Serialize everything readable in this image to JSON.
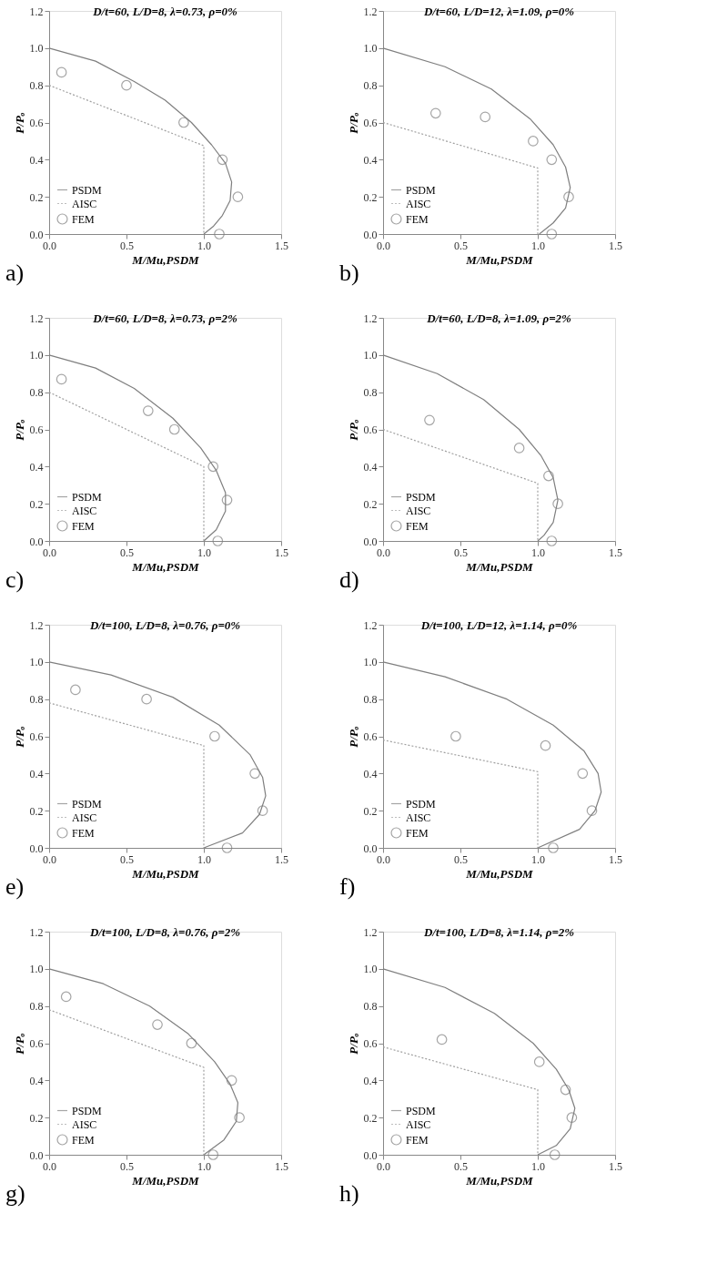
{
  "chart_data": [
    {
      "type": "line",
      "title": "D/t=60, L/D=8, λ=0.73, ρ=0%",
      "xlabel": "M/Mu,PSDM",
      "ylabel": "P/Pₒ",
      "annotations": [
        "a)"
      ],
      "legend": "bottom left",
      "grid": false,
      "xlim": [
        0,
        1.5
      ],
      "xticks": [
        {
          "value": 0,
          "label": "0.0"
        },
        {
          "value": 0.5,
          "label": "0.5"
        },
        {
          "value": 1,
          "label": "1.0"
        },
        {
          "value": 1.5,
          "label": "1.5"
        }
      ],
      "ylim": [
        0,
        1.2
      ],
      "yticks": [
        {
          "value": 0,
          "label": "0.0"
        },
        {
          "value": 0.2,
          "label": "0.2"
        },
        {
          "value": 0.4,
          "label": "0.4"
        },
        {
          "value": 0.6,
          "label": "0.6"
        },
        {
          "value": 0.8,
          "label": "0.8"
        },
        {
          "value": 1,
          "label": "1.0"
        },
        {
          "value": 1.2,
          "label": "1.2"
        }
      ],
      "series": [
        {
          "name": "PSDM",
          "color": "#7f7f7f",
          "line_style": "solid",
          "x": [
            0,
            0.3,
            0.55,
            0.75,
            0.92,
            1.05,
            1.14,
            1.18,
            1.17,
            1.12,
            1.06,
            1.0
          ],
          "values": [
            1.0,
            0.93,
            0.82,
            0.72,
            0.6,
            0.48,
            0.38,
            0.28,
            0.18,
            0.1,
            0.04,
            0.0
          ]
        },
        {
          "name": "AISC",
          "color": "#a0a0a0",
          "line_style": "dotted",
          "x": [
            0,
            1.0,
            1.0
          ],
          "values": [
            0.8,
            0.475,
            0.0
          ]
        },
        {
          "name": "FEM",
          "type": "scatter",
          "marker": "circle",
          "color": "#7f7f7f",
          "x": [
            0.08,
            0.5,
            0.87,
            1.12,
            1.22,
            1.1
          ],
          "values": [
            0.87,
            0.8,
            0.6,
            0.4,
            0.2,
            0.0
          ]
        }
      ]
    },
    {
      "type": "line",
      "title": "D/t=60, L/D=12, λ=1.09, ρ=0%",
      "xlabel": "M/Mu,PSDM",
      "ylabel": "P/Pₒ",
      "annotations": [
        "b)"
      ],
      "legend": "bottom left",
      "grid": false,
      "xlim": [
        0,
        1.5
      ],
      "xticks": [
        {
          "value": 0,
          "label": "0.0"
        },
        {
          "value": 0.5,
          "label": "0.5"
        },
        {
          "value": 1,
          "label": "1.0"
        },
        {
          "value": 1.5,
          "label": "1.5"
        }
      ],
      "ylim": [
        0,
        1.2
      ],
      "yticks": [
        {
          "value": 0,
          "label": "0.0"
        },
        {
          "value": 0.2,
          "label": "0.2"
        },
        {
          "value": 0.4,
          "label": "0.4"
        },
        {
          "value": 0.6,
          "label": "0.6"
        },
        {
          "value": 0.8,
          "label": "0.8"
        },
        {
          "value": 1,
          "label": "1.0"
        },
        {
          "value": 1.2,
          "label": "1.2"
        }
      ],
      "series": [
        {
          "name": "PSDM",
          "color": "#7f7f7f",
          "line_style": "solid",
          "x": [
            0,
            0.4,
            0.7,
            0.95,
            1.1,
            1.18,
            1.21,
            1.18,
            1.1,
            1.01
          ],
          "values": [
            1.0,
            0.9,
            0.78,
            0.62,
            0.48,
            0.36,
            0.25,
            0.14,
            0.06,
            0.0
          ]
        },
        {
          "name": "AISC",
          "color": "#a0a0a0",
          "line_style": "dotted",
          "x": [
            0,
            1.0,
            1.0
          ],
          "values": [
            0.6,
            0.355,
            0.0
          ]
        },
        {
          "name": "FEM",
          "type": "scatter",
          "marker": "circle",
          "color": "#7f7f7f",
          "x": [
            0.34,
            0.66,
            0.97,
            1.09,
            1.2,
            1.09
          ],
          "values": [
            0.65,
            0.63,
            0.5,
            0.4,
            0.2,
            0.0
          ]
        }
      ]
    },
    {
      "type": "line",
      "title": "D/t=60, L/D=8, λ=0.73, ρ=2%",
      "xlabel": "M/Mu,PSDM",
      "ylabel": "P/Pₒ",
      "annotations": [
        "c)"
      ],
      "legend": "bottom left",
      "grid": false,
      "xlim": [
        0,
        1.5
      ],
      "xticks": [
        {
          "value": 0,
          "label": "0.0"
        },
        {
          "value": 0.5,
          "label": "0.5"
        },
        {
          "value": 1,
          "label": "1.0"
        },
        {
          "value": 1.5,
          "label": "1.5"
        }
      ],
      "ylim": [
        0,
        1.2
      ],
      "yticks": [
        {
          "value": 0,
          "label": "0.0"
        },
        {
          "value": 0.2,
          "label": "0.2"
        },
        {
          "value": 0.4,
          "label": "0.4"
        },
        {
          "value": 0.6,
          "label": "0.6"
        },
        {
          "value": 0.8,
          "label": "0.8"
        },
        {
          "value": 1,
          "label": "1.0"
        },
        {
          "value": 1.2,
          "label": "1.2"
        }
      ],
      "series": [
        {
          "name": "PSDM",
          "color": "#7f7f7f",
          "line_style": "solid",
          "x": [
            0,
            0.3,
            0.55,
            0.8,
            0.98,
            1.08,
            1.14,
            1.14,
            1.08,
            1.0
          ],
          "values": [
            1.0,
            0.93,
            0.82,
            0.66,
            0.5,
            0.38,
            0.26,
            0.16,
            0.06,
            0.0
          ]
        },
        {
          "name": "AISC",
          "color": "#a0a0a0",
          "line_style": "dotted",
          "x": [
            0,
            1.0,
            1.0
          ],
          "values": [
            0.8,
            0.4,
            0.0
          ]
        },
        {
          "name": "FEM",
          "type": "scatter",
          "marker": "circle",
          "color": "#7f7f7f",
          "x": [
            0.08,
            0.64,
            0.81,
            1.06,
            1.15,
            1.09
          ],
          "values": [
            0.87,
            0.7,
            0.6,
            0.4,
            0.22,
            0.0
          ]
        }
      ]
    },
    {
      "type": "line",
      "title": "D/t=60, L/D=8, λ=1.09, ρ=2%",
      "xlabel": "M/Mu,PSDM",
      "ylabel": "P/Pₒ",
      "annotations": [
        "d)"
      ],
      "legend": "bottom left",
      "grid": false,
      "xlim": [
        0,
        1.5
      ],
      "xticks": [
        {
          "value": 0,
          "label": "0.0"
        },
        {
          "value": 0.5,
          "label": "0.5"
        },
        {
          "value": 1,
          "label": "1.0"
        },
        {
          "value": 1.5,
          "label": "1.5"
        }
      ],
      "ylim": [
        0,
        1.2
      ],
      "yticks": [
        {
          "value": 0,
          "label": "0.0"
        },
        {
          "value": 0.2,
          "label": "0.2"
        },
        {
          "value": 0.4,
          "label": "0.4"
        },
        {
          "value": 0.6,
          "label": "0.6"
        },
        {
          "value": 0.8,
          "label": "0.8"
        },
        {
          "value": 1,
          "label": "1.0"
        },
        {
          "value": 1.2,
          "label": "1.2"
        }
      ],
      "series": [
        {
          "name": "PSDM",
          "color": "#7f7f7f",
          "line_style": "solid",
          "x": [
            0,
            0.35,
            0.65,
            0.88,
            1.02,
            1.1,
            1.13,
            1.1,
            1.04,
            1.0
          ],
          "values": [
            1.0,
            0.9,
            0.76,
            0.6,
            0.46,
            0.34,
            0.22,
            0.1,
            0.03,
            0.0
          ]
        },
        {
          "name": "AISC",
          "color": "#a0a0a0",
          "line_style": "dotted",
          "x": [
            0,
            1.0,
            1.0
          ],
          "values": [
            0.6,
            0.31,
            0.0
          ]
        },
        {
          "name": "FEM",
          "type": "scatter",
          "marker": "circle",
          "color": "#7f7f7f",
          "x": [
            0.3,
            0.88,
            1.07,
            1.13,
            1.09
          ],
          "values": [
            0.65,
            0.5,
            0.35,
            0.2,
            0.0
          ]
        }
      ]
    },
    {
      "type": "line",
      "title": "D/t=100, L/D=8, λ=0.76, ρ=0%",
      "xlabel": "M/Mu,PSDM",
      "ylabel": "P/Pₒ",
      "annotations": [
        "e)"
      ],
      "legend": "bottom left",
      "grid": false,
      "xlim": [
        0,
        1.5
      ],
      "xticks": [
        {
          "value": 0,
          "label": "0.0"
        },
        {
          "value": 0.5,
          "label": "0.5"
        },
        {
          "value": 1,
          "label": "1.0"
        },
        {
          "value": 1.5,
          "label": "1.5"
        }
      ],
      "ylim": [
        0,
        1.2
      ],
      "yticks": [
        {
          "value": 0,
          "label": "0.0"
        },
        {
          "value": 0.2,
          "label": "0.2"
        },
        {
          "value": 0.4,
          "label": "0.4"
        },
        {
          "value": 0.6,
          "label": "0.6"
        },
        {
          "value": 0.8,
          "label": "0.8"
        },
        {
          "value": 1,
          "label": "1.0"
        },
        {
          "value": 1.2,
          "label": "1.2"
        }
      ],
      "series": [
        {
          "name": "PSDM",
          "color": "#7f7f7f",
          "line_style": "solid",
          "x": [
            0,
            0.4,
            0.8,
            1.1,
            1.3,
            1.38,
            1.4,
            1.36,
            1.25,
            1.0
          ],
          "values": [
            1.0,
            0.93,
            0.81,
            0.66,
            0.5,
            0.38,
            0.28,
            0.18,
            0.08,
            0.0
          ]
        },
        {
          "name": "AISC",
          "color": "#a0a0a0",
          "line_style": "dotted",
          "x": [
            0,
            1.0,
            1.0
          ],
          "values": [
            0.78,
            0.55,
            0.0
          ]
        },
        {
          "name": "FEM",
          "type": "scatter",
          "marker": "circle",
          "color": "#7f7f7f",
          "x": [
            0.17,
            0.63,
            1.07,
            1.33,
            1.38,
            1.15
          ],
          "values": [
            0.85,
            0.8,
            0.6,
            0.4,
            0.2,
            0.0
          ]
        }
      ]
    },
    {
      "type": "line",
      "title": "D/t=100, L/D=12, λ=1.14, ρ=0%",
      "xlabel": "M/Mu,PSDM",
      "ylabel": "P/Pₒ",
      "annotations": [
        "f)"
      ],
      "legend": "bottom left",
      "grid": false,
      "xlim": [
        0,
        1.5
      ],
      "xticks": [
        {
          "value": 0,
          "label": "0.0"
        },
        {
          "value": 0.5,
          "label": "0.5"
        },
        {
          "value": 1,
          "label": "1.0"
        },
        {
          "value": 1.5,
          "label": "1.5"
        }
      ],
      "ylim": [
        0,
        1.2
      ],
      "yticks": [
        {
          "value": 0,
          "label": "0.0"
        },
        {
          "value": 0.2,
          "label": "0.2"
        },
        {
          "value": 0.4,
          "label": "0.4"
        },
        {
          "value": 0.6,
          "label": "0.6"
        },
        {
          "value": 0.8,
          "label": "0.8"
        },
        {
          "value": 1,
          "label": "1.0"
        },
        {
          "value": 1.2,
          "label": "1.2"
        }
      ],
      "series": [
        {
          "name": "PSDM",
          "color": "#7f7f7f",
          "line_style": "solid",
          "x": [
            0,
            0.4,
            0.8,
            1.1,
            1.3,
            1.39,
            1.41,
            1.37,
            1.27,
            1.0
          ],
          "values": [
            1.0,
            0.92,
            0.8,
            0.66,
            0.52,
            0.4,
            0.3,
            0.2,
            0.1,
            0.0
          ]
        },
        {
          "name": "AISC",
          "color": "#a0a0a0",
          "line_style": "dotted",
          "x": [
            0,
            1.0,
            1.0
          ],
          "values": [
            0.58,
            0.41,
            0.0
          ]
        },
        {
          "name": "FEM",
          "type": "scatter",
          "marker": "circle",
          "color": "#7f7f7f",
          "x": [
            0.47,
            1.05,
            1.29,
            1.35,
            1.1
          ],
          "values": [
            0.6,
            0.55,
            0.4,
            0.2,
            0.0
          ]
        }
      ]
    },
    {
      "type": "line",
      "title": "D/t=100, L/D=8, λ=0.76, ρ=2%",
      "xlabel": "M/Mu,PSDM",
      "ylabel": "P/Pₒ",
      "annotations": [
        "g)"
      ],
      "legend": "bottom left",
      "grid": false,
      "xlim": [
        0,
        1.5
      ],
      "xticks": [
        {
          "value": 0,
          "label": "0.0"
        },
        {
          "value": 0.5,
          "label": "0.5"
        },
        {
          "value": 1,
          "label": "1.0"
        },
        {
          "value": 1.5,
          "label": "1.5"
        }
      ],
      "ylim": [
        0,
        1.2
      ],
      "yticks": [
        {
          "value": 0,
          "label": "0.0"
        },
        {
          "value": 0.2,
          "label": "0.2"
        },
        {
          "value": 0.4,
          "label": "0.4"
        },
        {
          "value": 0.6,
          "label": "0.6"
        },
        {
          "value": 0.8,
          "label": "0.8"
        },
        {
          "value": 1,
          "label": "1.0"
        },
        {
          "value": 1.2,
          "label": "1.2"
        }
      ],
      "series": [
        {
          "name": "PSDM",
          "color": "#7f7f7f",
          "line_style": "solid",
          "x": [
            0,
            0.35,
            0.65,
            0.9,
            1.07,
            1.17,
            1.22,
            1.21,
            1.13,
            1.0
          ],
          "values": [
            1.0,
            0.92,
            0.8,
            0.65,
            0.5,
            0.38,
            0.28,
            0.18,
            0.08,
            0.0
          ]
        },
        {
          "name": "AISC",
          "color": "#a0a0a0",
          "line_style": "dotted",
          "x": [
            0,
            1.0,
            1.0
          ],
          "values": [
            0.78,
            0.47,
            0.0
          ]
        },
        {
          "name": "FEM",
          "type": "scatter",
          "marker": "circle",
          "color": "#7f7f7f",
          "x": [
            0.11,
            0.7,
            0.92,
            1.18,
            1.23,
            1.06
          ],
          "values": [
            0.85,
            0.7,
            0.6,
            0.4,
            0.2,
            0.0
          ]
        }
      ]
    },
    {
      "type": "line",
      "title": "D/t=100, L/D=8, λ=1.14, ρ=2%",
      "xlabel": "M/Mu,PSDM",
      "ylabel": "P/Pₒ",
      "annotations": [
        "h)"
      ],
      "legend": "bottom left",
      "grid": false,
      "xlim": [
        0,
        1.5
      ],
      "xticks": [
        {
          "value": 0,
          "label": "0.0"
        },
        {
          "value": 0.5,
          "label": "0.5"
        },
        {
          "value": 1,
          "label": "1.0"
        },
        {
          "value": 1.5,
          "label": "1.5"
        }
      ],
      "ylim": [
        0,
        1.2
      ],
      "yticks": [
        {
          "value": 0,
          "label": "0.0"
        },
        {
          "value": 0.2,
          "label": "0.2"
        },
        {
          "value": 0.4,
          "label": "0.4"
        },
        {
          "value": 0.6,
          "label": "0.6"
        },
        {
          "value": 0.8,
          "label": "0.8"
        },
        {
          "value": 1,
          "label": "1.0"
        },
        {
          "value": 1.2,
          "label": "1.2"
        }
      ],
      "series": [
        {
          "name": "PSDM",
          "color": "#7f7f7f",
          "line_style": "solid",
          "x": [
            0,
            0.4,
            0.72,
            0.97,
            1.12,
            1.2,
            1.24,
            1.21,
            1.12,
            1.0
          ],
          "values": [
            1.0,
            0.9,
            0.76,
            0.6,
            0.46,
            0.35,
            0.25,
            0.14,
            0.05,
            0.0
          ]
        },
        {
          "name": "AISC",
          "color": "#a0a0a0",
          "line_style": "dotted",
          "x": [
            0,
            1.0,
            1.0
          ],
          "values": [
            0.58,
            0.35,
            0.0
          ]
        },
        {
          "name": "FEM",
          "type": "scatter",
          "marker": "circle",
          "color": "#7f7f7f",
          "x": [
            0.38,
            1.01,
            1.18,
            1.22,
            1.11
          ],
          "values": [
            0.62,
            0.5,
            0.35,
            0.2,
            0.0
          ]
        }
      ]
    }
  ]
}
